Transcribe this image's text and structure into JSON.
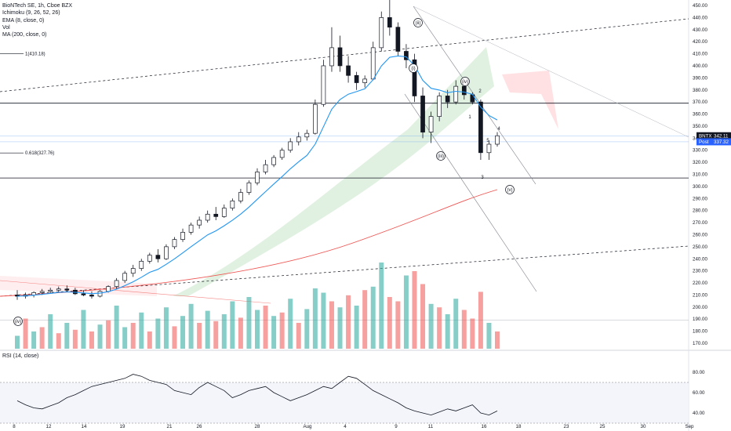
{
  "chart_data": {
    "type": "candlestick",
    "title": "BioNTech SE, 1h, Cboe BZX",
    "indicators": [
      "Ichimoku (9, 26, 52, 26)",
      "EMA (8, close, 0)",
      "Vol",
      "MA (200, close, 0)"
    ],
    "rsi_title": "RSI (14, close)",
    "symbol_tag": "BNTX",
    "last_price": "342.11",
    "post_label": "Post",
    "post_price": "337.32",
    "y_ticks": [
      "450.00",
      "440.00",
      "430.00",
      "420.00",
      "410.00",
      "400.00",
      "390.00",
      "380.00",
      "370.00",
      "360.00",
      "350.00",
      "340.00",
      "330.00",
      "320.00",
      "310.00",
      "300.00",
      "290.00",
      "280.00",
      "270.00",
      "260.00",
      "250.00",
      "240.00",
      "230.00",
      "220.00",
      "210.00",
      "200.00",
      "190.00",
      "180.00",
      "170.00"
    ],
    "rsi_ticks": [
      "80.00",
      "60.00",
      "40.00"
    ],
    "x_labels": [
      "8",
      "12",
      "14",
      "19",
      "21",
      "26",
      "28",
      "Aug",
      "4",
      "9",
      "11",
      "16",
      "18",
      "23",
      "25",
      "30",
      "Sep"
    ],
    "fib_labels": [
      "1(410.18)",
      "0.618(327.76)"
    ],
    "wave_labels": [
      "(iv)",
      "(i)",
      "(ii)",
      "(iii)",
      "(iv)",
      "(v)"
    ],
    "minor_labels": [
      "1",
      "2",
      "3",
      "4",
      "5"
    ],
    "candles": [
      {
        "x": 0,
        "o": 210,
        "h": 214,
        "l": 206,
        "c": 209
      },
      {
        "x": 1,
        "o": 209,
        "h": 212,
        "l": 207,
        "c": 210
      },
      {
        "x": 2,
        "o": 210,
        "h": 213,
        "l": 208,
        "c": 212
      },
      {
        "x": 3,
        "o": 212,
        "h": 215,
        "l": 210,
        "c": 213
      },
      {
        "x": 4,
        "o": 213,
        "h": 216,
        "l": 211,
        "c": 214
      },
      {
        "x": 5,
        "o": 214,
        "h": 217,
        "l": 212,
        "c": 215
      },
      {
        "x": 6,
        "o": 215,
        "h": 218,
        "l": 213,
        "c": 214
      },
      {
        "x": 7,
        "o": 214,
        "h": 216,
        "l": 210,
        "c": 211
      },
      {
        "x": 8,
        "o": 211,
        "h": 214,
        "l": 209,
        "c": 210
      },
      {
        "x": 9,
        "o": 210,
        "h": 213,
        "l": 207,
        "c": 209
      },
      {
        "x": 10,
        "o": 209,
        "h": 214,
        "l": 208,
        "c": 213
      },
      {
        "x": 11,
        "o": 213,
        "h": 218,
        "l": 212,
        "c": 217
      },
      {
        "x": 12,
        "o": 217,
        "h": 224,
        "l": 215,
        "c": 222
      },
      {
        "x": 13,
        "o": 222,
        "h": 230,
        "l": 220,
        "c": 228
      },
      {
        "x": 14,
        "o": 228,
        "h": 235,
        "l": 225,
        "c": 232
      },
      {
        "x": 15,
        "o": 232,
        "h": 240,
        "l": 230,
        "c": 238
      },
      {
        "x": 16,
        "o": 238,
        "h": 245,
        "l": 236,
        "c": 243
      },
      {
        "x": 17,
        "o": 243,
        "h": 248,
        "l": 237,
        "c": 240
      },
      {
        "x": 18,
        "o": 240,
        "h": 252,
        "l": 239,
        "c": 250
      },
      {
        "x": 19,
        "o": 250,
        "h": 258,
        "l": 248,
        "c": 256
      },
      {
        "x": 20,
        "o": 256,
        "h": 265,
        "l": 254,
        "c": 262
      },
      {
        "x": 21,
        "o": 262,
        "h": 270,
        "l": 260,
        "c": 268
      },
      {
        "x": 22,
        "o": 268,
        "h": 275,
        "l": 265,
        "c": 272
      },
      {
        "x": 23,
        "o": 272,
        "h": 280,
        "l": 270,
        "c": 277
      },
      {
        "x": 24,
        "o": 277,
        "h": 283,
        "l": 272,
        "c": 275
      },
      {
        "x": 25,
        "o": 275,
        "h": 285,
        "l": 274,
        "c": 282
      },
      {
        "x": 26,
        "o": 282,
        "h": 290,
        "l": 280,
        "c": 288
      },
      {
        "x": 27,
        "o": 288,
        "h": 298,
        "l": 286,
        "c": 295
      },
      {
        "x": 28,
        "o": 295,
        "h": 305,
        "l": 293,
        "c": 303
      },
      {
        "x": 29,
        "o": 303,
        "h": 315,
        "l": 301,
        "c": 312
      },
      {
        "x": 30,
        "o": 312,
        "h": 322,
        "l": 310,
        "c": 318
      },
      {
        "x": 31,
        "o": 318,
        "h": 326,
        "l": 316,
        "c": 324
      },
      {
        "x": 32,
        "o": 324,
        "h": 332,
        "l": 322,
        "c": 330
      },
      {
        "x": 33,
        "o": 330,
        "h": 340,
        "l": 328,
        "c": 337
      },
      {
        "x": 34,
        "o": 337,
        "h": 345,
        "l": 334,
        "c": 341
      },
      {
        "x": 35,
        "o": 341,
        "h": 347,
        "l": 338,
        "c": 344
      },
      {
        "x": 36,
        "o": 344,
        "h": 372,
        "l": 343,
        "c": 368
      },
      {
        "x": 37,
        "o": 368,
        "h": 405,
        "l": 366,
        "c": 400
      },
      {
        "x": 38,
        "o": 400,
        "h": 432,
        "l": 395,
        "c": 415
      },
      {
        "x": 39,
        "o": 415,
        "h": 425,
        "l": 395,
        "c": 400
      },
      {
        "x": 40,
        "o": 400,
        "h": 408,
        "l": 386,
        "c": 392
      },
      {
        "x": 41,
        "o": 392,
        "h": 395,
        "l": 380,
        "c": 386
      },
      {
        "x": 42,
        "o": 386,
        "h": 392,
        "l": 382,
        "c": 389
      },
      {
        "x": 43,
        "o": 389,
        "h": 420,
        "l": 388,
        "c": 415
      },
      {
        "x": 44,
        "o": 415,
        "h": 445,
        "l": 412,
        "c": 440
      },
      {
        "x": 45,
        "o": 440,
        "h": 455,
        "l": 425,
        "c": 432
      },
      {
        "x": 46,
        "o": 432,
        "h": 436,
        "l": 408,
        "c": 412
      },
      {
        "x": 47,
        "o": 412,
        "h": 418,
        "l": 398,
        "c": 405
      },
      {
        "x": 48,
        "o": 405,
        "h": 410,
        "l": 370,
        "c": 375
      },
      {
        "x": 49,
        "o": 375,
        "h": 382,
        "l": 340,
        "c": 345
      },
      {
        "x": 50,
        "o": 345,
        "h": 362,
        "l": 336,
        "c": 358
      },
      {
        "x": 51,
        "o": 358,
        "h": 378,
        "l": 354,
        "c": 375
      },
      {
        "x": 52,
        "o": 375,
        "h": 380,
        "l": 365,
        "c": 370
      },
      {
        "x": 53,
        "o": 370,
        "h": 388,
        "l": 368,
        "c": 383
      },
      {
        "x": 54,
        "o": 383,
        "h": 386,
        "l": 372,
        "c": 376
      },
      {
        "x": 55,
        "o": 376,
        "h": 378,
        "l": 368,
        "c": 370
      },
      {
        "x": 56,
        "o": 370,
        "h": 372,
        "l": 322,
        "c": 328
      },
      {
        "x": 57,
        "o": 328,
        "h": 338,
        "l": 322,
        "c": 335
      },
      {
        "x": 58,
        "o": 335,
        "h": 345,
        "l": 333,
        "c": 342
      }
    ],
    "volume_bars": [
      {
        "v": 0.15,
        "up": true
      },
      {
        "v": 0.35,
        "up": false
      },
      {
        "v": 0.2,
        "up": true
      },
      {
        "v": 0.25,
        "up": false
      },
      {
        "v": 0.4,
        "up": true
      },
      {
        "v": 0.18,
        "up": false
      },
      {
        "v": 0.3,
        "up": true
      },
      {
        "v": 0.22,
        "up": false
      },
      {
        "v": 0.45,
        "up": true
      },
      {
        "v": 0.2,
        "up": false
      },
      {
        "v": 0.28,
        "up": true
      },
      {
        "v": 0.33,
        "up": false
      },
      {
        "v": 0.5,
        "up": true
      },
      {
        "v": 0.25,
        "up": true
      },
      {
        "v": 0.3,
        "up": false
      },
      {
        "v": 0.42,
        "up": true
      },
      {
        "v": 0.2,
        "up": false
      },
      {
        "v": 0.35,
        "up": true
      },
      {
        "v": 0.48,
        "up": true
      },
      {
        "v": 0.26,
        "up": false
      },
      {
        "v": 0.38,
        "up": true
      },
      {
        "v": 0.52,
        "up": true
      },
      {
        "v": 0.3,
        "up": false
      },
      {
        "v": 0.44,
        "up": true
      },
      {
        "v": 0.32,
        "up": false
      },
      {
        "v": 0.4,
        "up": true
      },
      {
        "v": 0.55,
        "up": true
      },
      {
        "v": 0.36,
        "up": false
      },
      {
        "v": 0.6,
        "up": true
      },
      {
        "v": 0.45,
        "up": true
      },
      {
        "v": 0.5,
        "up": false
      },
      {
        "v": 0.38,
        "up": true
      },
      {
        "v": 0.42,
        "up": false
      },
      {
        "v": 0.58,
        "up": true
      },
      {
        "v": 0.3,
        "up": false
      },
      {
        "v": 0.46,
        "up": true
      },
      {
        "v": 0.7,
        "up": true
      },
      {
        "v": 0.65,
        "up": true
      },
      {
        "v": 0.55,
        "up": false
      },
      {
        "v": 0.48,
        "up": true
      },
      {
        "v": 0.62,
        "up": false
      },
      {
        "v": 0.5,
        "up": true
      },
      {
        "v": 0.68,
        "up": false
      },
      {
        "v": 0.72,
        "up": true
      },
      {
        "v": 1.0,
        "up": true
      },
      {
        "v": 0.6,
        "up": false
      },
      {
        "v": 0.55,
        "up": false
      },
      {
        "v": 0.85,
        "up": true
      },
      {
        "v": 0.9,
        "up": false
      },
      {
        "v": 0.75,
        "up": false
      },
      {
        "v": 0.52,
        "up": true
      },
      {
        "v": 0.48,
        "up": false
      },
      {
        "v": 0.4,
        "up": true
      },
      {
        "v": 0.58,
        "up": true
      },
      {
        "v": 0.45,
        "up": false
      },
      {
        "v": 0.35,
        "up": false
      },
      {
        "v": 0.66,
        "up": false
      },
      {
        "v": 0.3,
        "up": true
      },
      {
        "v": 0.2,
        "up": false
      }
    ],
    "rsi_values": [
      52,
      48,
      45,
      44,
      47,
      50,
      55,
      58,
      62,
      66,
      68,
      70,
      72,
      74,
      78,
      76,
      72,
      70,
      68,
      62,
      60,
      58,
      65,
      70,
      66,
      62,
      55,
      58,
      62,
      64,
      66,
      60,
      56,
      52,
      55,
      58,
      62,
      66,
      64,
      70,
      76,
      74,
      68,
      62,
      58,
      54,
      50,
      45,
      42,
      40,
      38,
      41,
      44,
      42,
      45,
      48,
      40,
      38,
      42
    ],
    "colors": {
      "up": "#26a69a",
      "down": "#ef5350",
      "ema": "#2196f3",
      "ma200": "#ef5350",
      "cloud_up": "#c8e6c9",
      "cloud_down": "#ffcdd2",
      "rsi": "#131722",
      "last_price_bg": "#131722",
      "post_bg": "#2962ff"
    }
  }
}
